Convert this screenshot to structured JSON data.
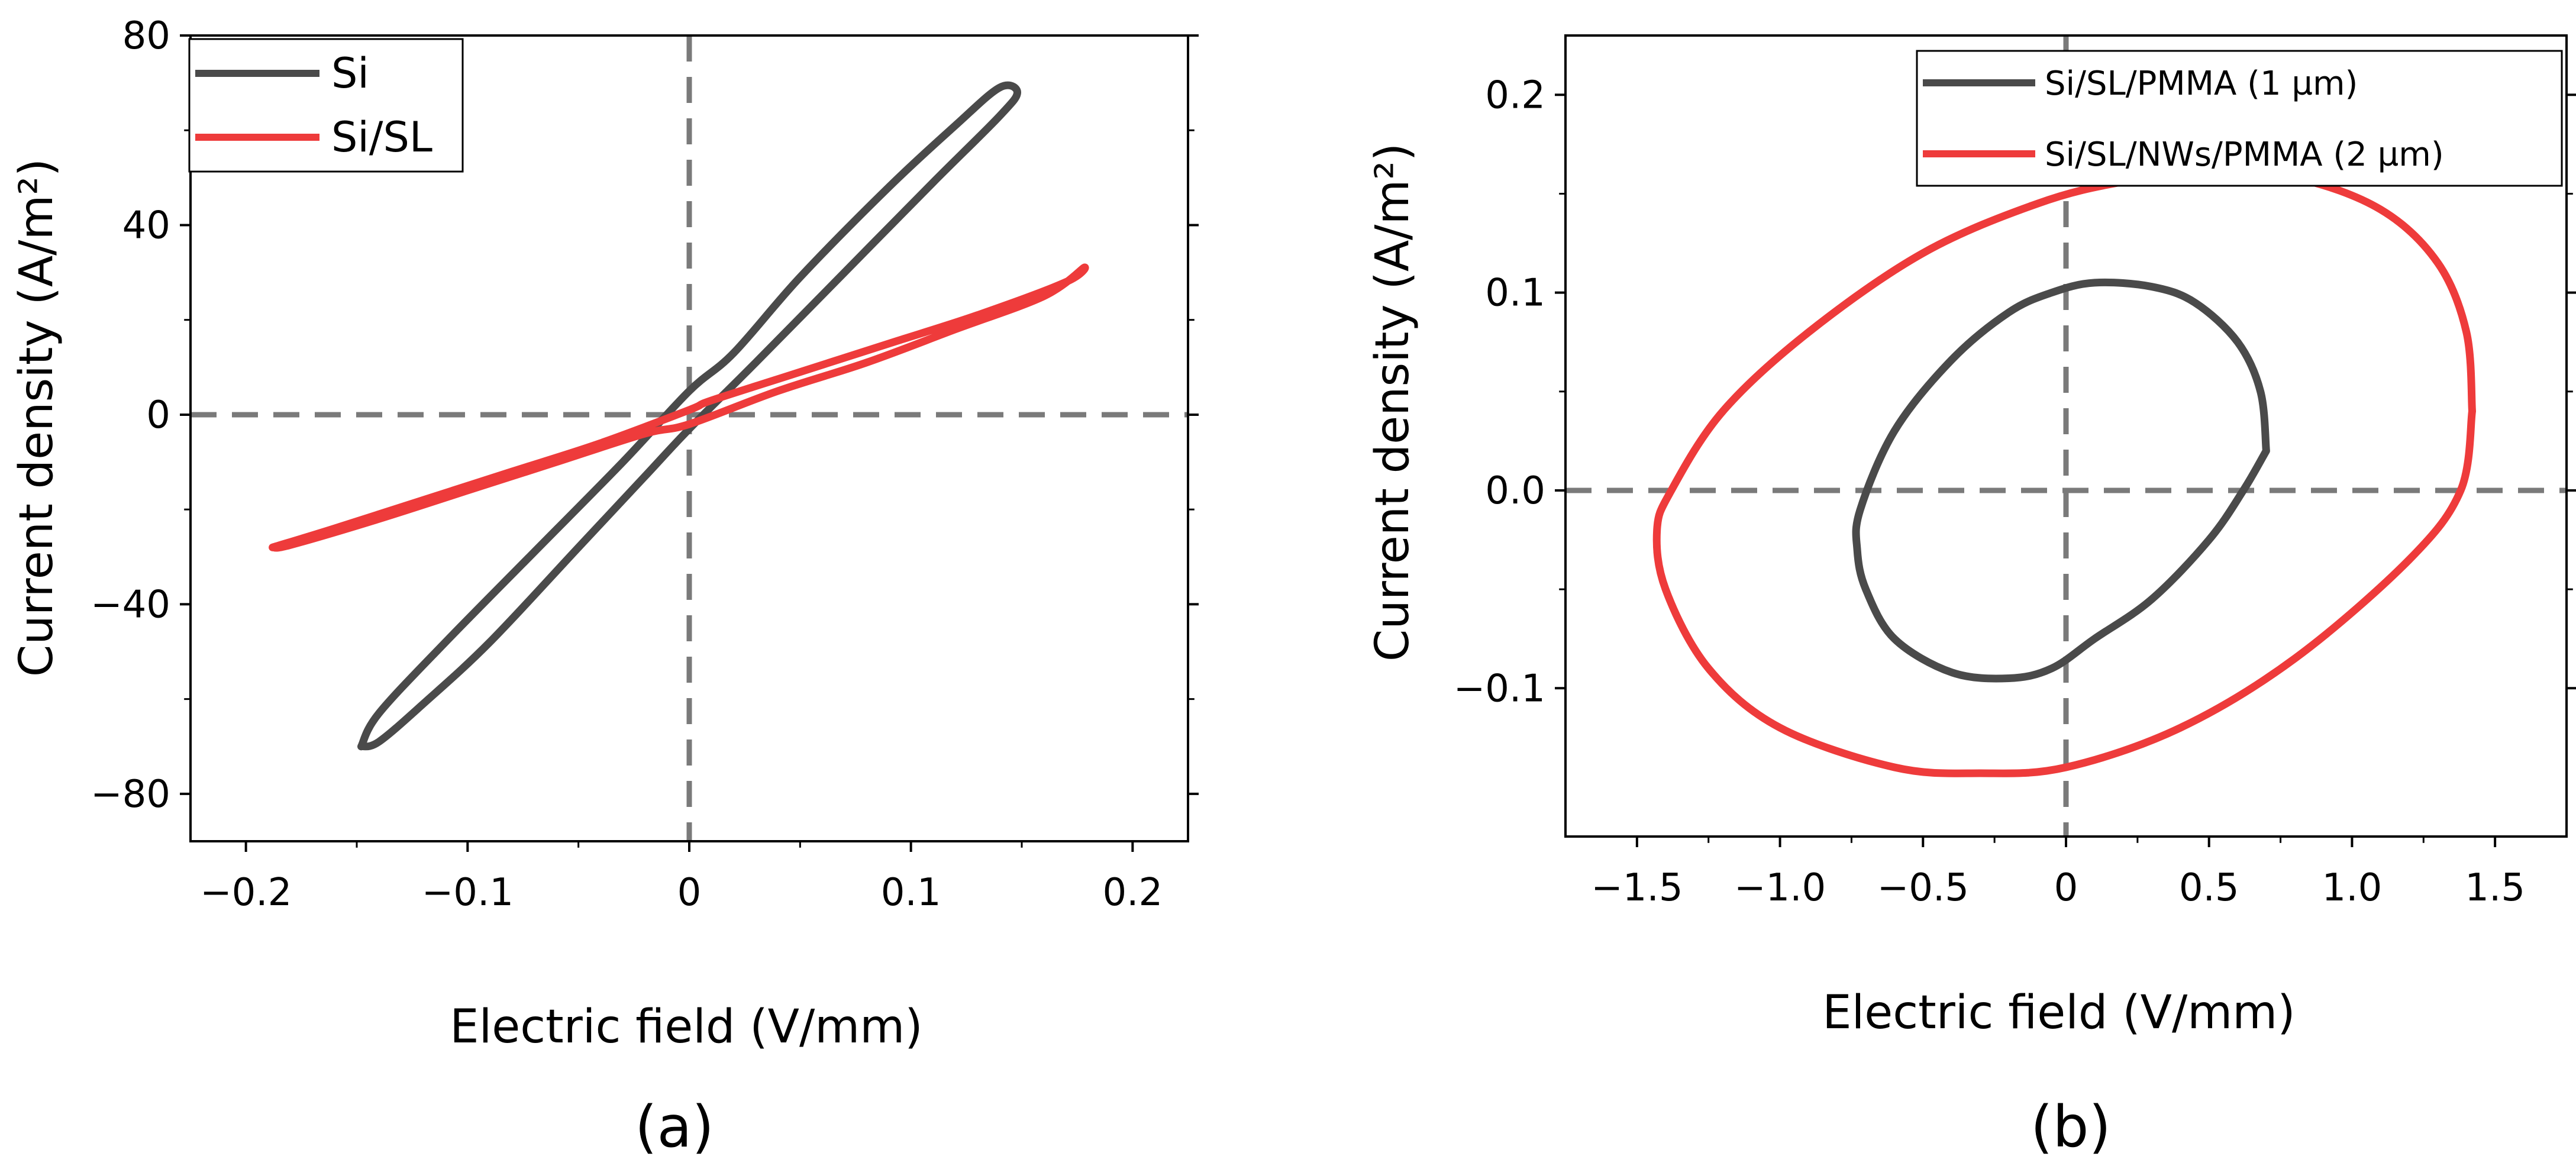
{
  "chart_data": [
    {
      "type": "line",
      "panel_label": "(a)",
      "title": "",
      "xlabel": "Electric field (V/mm)",
      "ylabel": "Current density (A/m²)",
      "xlim": [
        -0.225,
        0.225
      ],
      "ylim": [
        -90,
        80
      ],
      "xticks": [
        -0.2,
        -0.1,
        0,
        0.1,
        0.2
      ],
      "xtick_labels": [
        "−0.2",
        "−0.1",
        "0",
        "0.1",
        "0.2"
      ],
      "yticks": [
        -80,
        -40,
        0,
        40,
        80
      ],
      "ytick_labels": [
        "−80",
        "−40",
        "0",
        "40",
        "80"
      ],
      "reference_lines": {
        "x": 0,
        "y": 0
      },
      "grid": false,
      "legend_position": "top-left",
      "series": [
        {
          "name": "Si",
          "color": "#4a4a4a",
          "shape": "loop",
          "x": [
            -0.148,
            -0.14,
            -0.12,
            -0.09,
            -0.05,
            -0.02,
            0.0,
            0.03,
            0.07,
            0.11,
            0.14,
            0.148,
            0.14,
            0.12,
            0.09,
            0.05,
            0.02,
            0.0,
            -0.03,
            -0.07,
            -0.11,
            -0.14,
            -0.148
          ],
          "y": [
            -70,
            -69,
            -61,
            -48,
            -28,
            -13,
            -3,
            11,
            30,
            49,
            63,
            68,
            69,
            61,
            48,
            29,
            13,
            5,
            -10,
            -29,
            -48,
            -63,
            -70
          ]
        },
        {
          "name": "Si/SL",
          "color": "#ee3b3b",
          "shape": "loop",
          "x": [
            -0.188,
            -0.18,
            -0.14,
            -0.1,
            -0.06,
            -0.02,
            0.0,
            0.04,
            0.08,
            0.12,
            0.16,
            0.178,
            0.17,
            0.13,
            0.09,
            0.05,
            0.01,
            0.0,
            -0.04,
            -0.08,
            -0.12,
            -0.16,
            -0.188
          ],
          "y": [
            -28,
            -27.5,
            -22,
            -16,
            -10,
            -4,
            -2,
            5,
            11,
            18,
            25,
            31,
            28,
            21,
            15,
            9,
            3,
            1,
            -6,
            -12,
            -18,
            -24,
            -28
          ]
        }
      ]
    },
    {
      "type": "line",
      "panel_label": "(b)",
      "title": "",
      "xlabel": "Electric field (V/mm)",
      "ylabel": "Current density (A/m²)",
      "xlim": [
        -1.75,
        1.75
      ],
      "ylim": [
        -0.175,
        0.23
      ],
      "xticks": [
        -1.5,
        -1.0,
        -0.5,
        0,
        0.5,
        1.0,
        1.5
      ],
      "xtick_labels": [
        "−1.5",
        "−1.0",
        "−0.5",
        "0",
        "0.5",
        "1.0",
        "1.5"
      ],
      "yticks": [
        -0.1,
        0.0,
        0.1,
        0.2
      ],
      "ytick_labels": [
        "−0.1",
        "0.0",
        "0.1",
        "0.2"
      ],
      "reference_lines": {
        "x": 0,
        "y": 0
      },
      "grid": false,
      "legend_position": "top-right",
      "series": [
        {
          "name": "Si/SL/PMMA (1 µm)",
          "color": "#4a4a4a",
          "shape": "loop",
          "x": [
            0.7,
            0.68,
            0.6,
            0.45,
            0.3,
            0.1,
            -0.05,
            -0.2,
            -0.4,
            -0.6,
            -0.72,
            -0.73,
            -0.7,
            -0.6,
            -0.4,
            -0.2,
            -0.05,
            0.1,
            0.3,
            0.5,
            0.62,
            0.7
          ],
          "y": [
            0.02,
            0.05,
            0.075,
            0.095,
            0.103,
            0.105,
            0.1,
            0.09,
            0.066,
            0.03,
            -0.01,
            -0.03,
            -0.05,
            -0.075,
            -0.092,
            -0.095,
            -0.09,
            -0.075,
            -0.055,
            -0.025,
            0.0,
            0.02
          ]
        },
        {
          "name": "Si/SL/NWs/PMMA (2 µm)",
          "color": "#ee3b3b",
          "shape": "loop",
          "x": [
            1.42,
            1.4,
            1.3,
            1.1,
            0.8,
            0.5,
            0.2,
            -0.1,
            -0.5,
            -0.9,
            -1.2,
            -1.38,
            -1.43,
            -1.4,
            -1.25,
            -1.0,
            -0.6,
            -0.3,
            0.0,
            0.4,
            0.8,
            1.2,
            1.38,
            1.42
          ],
          "y": [
            0.04,
            0.08,
            0.115,
            0.142,
            0.158,
            0.16,
            0.156,
            0.145,
            0.12,
            0.08,
            0.04,
            0.0,
            -0.02,
            -0.05,
            -0.09,
            -0.12,
            -0.14,
            -0.143,
            -0.14,
            -0.12,
            -0.085,
            -0.035,
            0.0,
            0.04
          ]
        }
      ]
    }
  ]
}
